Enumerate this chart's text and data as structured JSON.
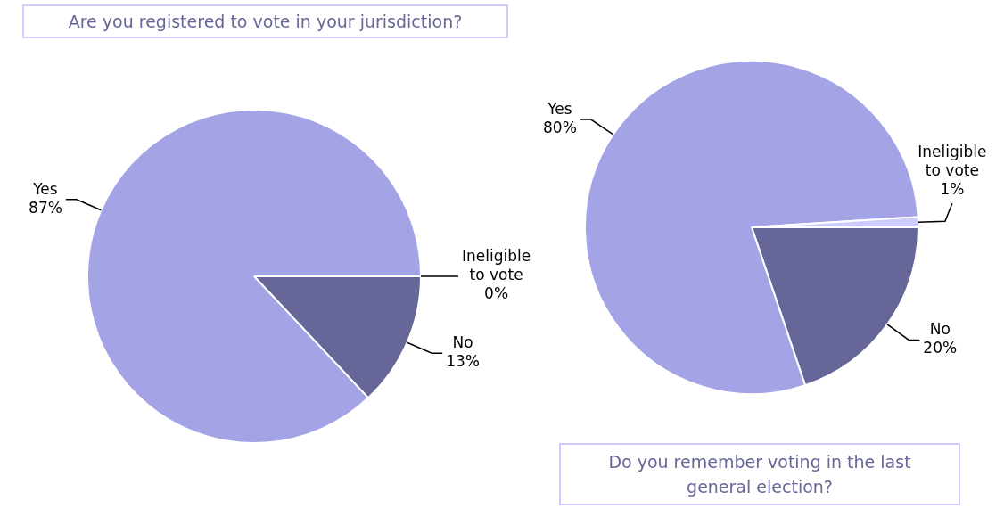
{
  "chart_data": [
    {
      "type": "pie",
      "title": "Are you registered to vote in your jurisdiction?",
      "categories": [
        "No",
        "Yes",
        "Ineligible to vote"
      ],
      "values": [
        13,
        87,
        0
      ],
      "value_labels": [
        "13%",
        "87%",
        "0%"
      ],
      "colors": [
        "#666699",
        "#a3a3e6",
        "#ccccff"
      ]
    },
    {
      "type": "pie",
      "title": "Do you remember voting in the last general election?",
      "categories": [
        "No",
        "Yes",
        "Ineligible to vote"
      ],
      "values": [
        20,
        80,
        1
      ],
      "value_labels": [
        "20%",
        "80%",
        "1%"
      ],
      "colors": [
        "#666699",
        "#a3a3e6",
        "#ccccff"
      ]
    }
  ]
}
